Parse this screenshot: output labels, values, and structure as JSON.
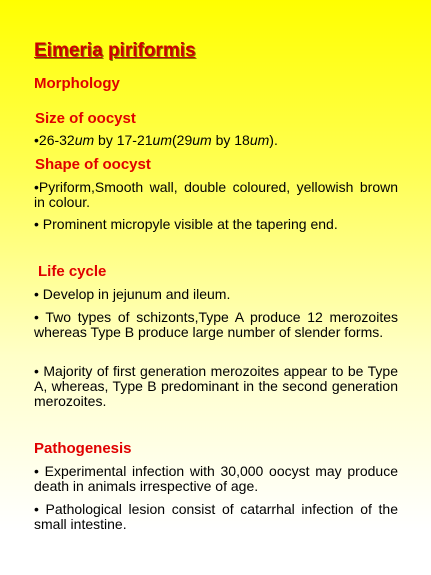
{
  "title": {
    "word1": "Eimeria",
    "word2": "piriformis"
  },
  "headings": {
    "morphology": "Morphology",
    "size": "Size of oocyst",
    "shape": "Shape of oocyst",
    "life_cycle": "Life cycle",
    "pathogenesis": "Pathogenesis"
  },
  "size": {
    "prefix": "•26-32",
    "unit1": "um",
    "mid1": " by 17-21",
    "unit2": "um",
    "mid2": "(29",
    "unit3": "um",
    "mid3": " by 18",
    "unit4": "um",
    "suffix": ")."
  },
  "shape": [
    "•Pyriform,Smooth wall, double coloured, yellowish brown in colour.",
    "• Prominent micropyle visible at the tapering end."
  ],
  "life_cycle": [
    "• Develop in jejunum and ileum.",
    "• Two types of schizonts,Type A produce 12 merozoites whereas Type B produce large number of slender forms.",
    "• Majority of first generation merozoites appear to be Type A, whereas, Type B predominant in the second generation merozoites."
  ],
  "pathogenesis": [
    "• Experimental infection with 30,000 oocyst may produce death in animals irrespective of age.",
    "• Pathological lesion consist of catarrhal infection of the small intestine."
  ]
}
